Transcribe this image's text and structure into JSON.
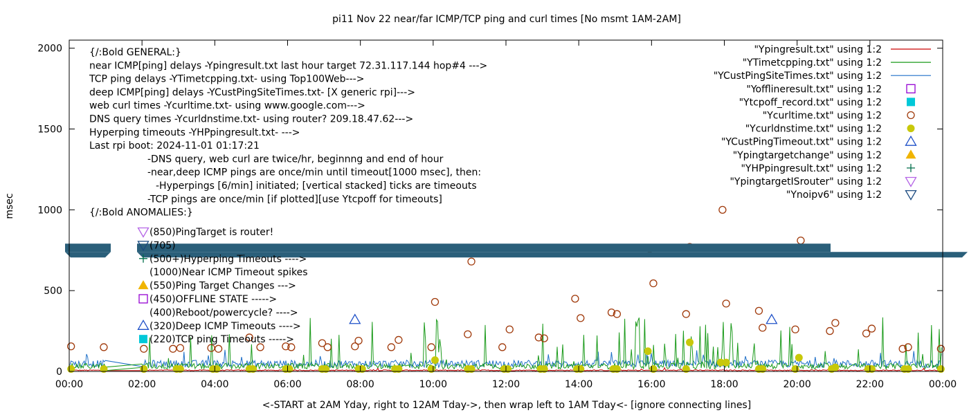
{
  "colors": {
    "ping": "#cc0000",
    "tcp": "#1a9a1a",
    "cust": "#1e6fc8",
    "offline": "#9400d3",
    "tcpoff": "#00c8d8",
    "curl": "#a0390a",
    "dns": "#c8c80a",
    "custTimeout": "#1e50c8",
    "targetChange": "#f0b400",
    "hp": "#006e4a",
    "isRouter": "#b464e6",
    "noipv6": "#1a4a80",
    "band": "#2a5f7a"
  },
  "chart_data": {
    "type": "scatter",
    "title": "pi11 Nov 22  near/far ICMP/TCP ping and curl times [No msmt 1AM-2AM]",
    "xlabel": "<-START at 2AM Yday, right to 12AM Tday->, then wrap left to 1AM Tday<- [ignore connecting lines]",
    "ylabel": "msec",
    "xlim": [
      0,
      24
    ],
    "ylim": [
      0,
      2050
    ],
    "grid": false,
    "legend_position": "top-right",
    "x_ticks": [
      "00:00",
      "02:00",
      "04:00",
      "06:00",
      "08:00",
      "10:00",
      "12:00",
      "14:00",
      "16:00",
      "18:00",
      "20:00",
      "22:00",
      "00:00"
    ],
    "y_ticks": [
      "0",
      "500",
      "1000",
      "1500",
      "2000"
    ],
    "annotation_lines": [
      "{/:Bold GENERAL:}",
      "near ICMP[ping] delays -Ypingresult.txt last hour target 72.31.117.144 hop#4 --->",
      "TCP ping delays -YTimetcpping.txt- using Top100Web--->",
      "deep ICMP[ping] delays -YCustPingSiteTimes.txt- [X generic rpi]--->",
      "web curl times -Ycurltime.txt- using www.google.com--->",
      "DNS query times -Ycurldnstime.txt- using router? 209.18.47.62--->",
      "Hyperping timeouts -YHPpingresult.txt- --->",
      "Last rpi boot: 2024-11-01 01:17:21",
      "-DNS query, web curl are twice/hr, beginnng and end of hour",
      "-near,deep ICMP pings are once/min until timeout[1000 msec], then:",
      "-Hyperpings [6/min] initiated; [vertical stacked] ticks are timeouts",
      "-TCP pings are once/min [if plotted][use Ytcpoff for timeouts]",
      "{/:Bold ANOMALIES:}"
    ],
    "anomaly_lines": [
      {
        "text": "(850)PingTarget is router!",
        "symbol": "isRouter"
      },
      {
        "text": "(705)",
        "symbol": "noipv6"
      },
      {
        "text": "(500+)Hyperping Timeouts ---->",
        "symbol": "hp"
      },
      {
        "text": "(1000)Near ICMP Timeout spikes",
        "symbol": ""
      },
      {
        "text": "(550)Ping Target Changes --->",
        "symbol": "targetChange"
      },
      {
        "text": "(450)OFFLINE STATE ----->",
        "symbol": "offline"
      },
      {
        "text": "(400)Reboot/powercycle? ---->",
        "symbol": ""
      },
      {
        "text": "(320)Deep ICMP Timeouts ---->",
        "symbol": "custTimeout"
      },
      {
        "text": "(220)TCP ping Timeouts ----->",
        "symbol": "tcpoff"
      }
    ],
    "legend": [
      {
        "file": "\"Ypingresult.txt\"",
        "using": "using 1:2",
        "style": "line",
        "color": "ping"
      },
      {
        "file": "\"YTimetcpping.txt\"",
        "using": "using 1:2",
        "style": "line",
        "color": "tcp"
      },
      {
        "file": "\"YCustPingSiteTimes.txt\"",
        "using": "using 1:2",
        "style": "line",
        "color": "cust"
      },
      {
        "file": "\"Yofflineresult.txt\"",
        "using": "using 1:2",
        "style": "open-square",
        "color": "offline"
      },
      {
        "file": "\"Ytcpoff_record.txt\"",
        "using": "using 1:2",
        "style": "filled-square",
        "color": "tcpoff"
      },
      {
        "file": "\"Ycurltime.txt\"",
        "using": "using 1:2",
        "style": "open-circle",
        "color": "curl"
      },
      {
        "file": "\"Ycurldnstime.txt\"",
        "using": "using 1:2",
        "style": "filled-circle",
        "color": "dns"
      },
      {
        "file": "\"YCustPingTimeout.txt\"",
        "using": "using 1:2",
        "style": "open-triangle",
        "color": "custTimeout"
      },
      {
        "file": "\"Ypingtargetchange\"",
        "using": "using 1:2",
        "style": "filled-triangle",
        "color": "targetChange"
      },
      {
        "file": "\"YHPpingresult.txt\"",
        "using": "using 1:2",
        "style": "plus",
        "color": "hp"
      },
      {
        "file": "\"YpingtargetISrouter\"",
        "using": "using 1:2",
        "style": "down-triangle",
        "color": "isRouter"
      },
      {
        "file": "\"Ynoipv6\"",
        "using": "using 1:2",
        "style": "down-triangle",
        "color": "noipv6"
      }
    ],
    "ipv6_band_y": 765,
    "series": [
      {
        "name": "\"Ycurltime.txt\"",
        "marker": "open-circle",
        "x": [
          0.05,
          0.95,
          2.05,
          2.85,
          3.05,
          3.9,
          4.1,
          4.95,
          5.25,
          5.95,
          6.1,
          6.95,
          7.1,
          7.85,
          7.95,
          8.85,
          9.05,
          9.95,
          10.05,
          10.95,
          11.05,
          11.9,
          12.1,
          12.9,
          13.05,
          13.9,
          14.05,
          14.9,
          15.05,
          15.95,
          16.05,
          16.95,
          17.05,
          17.95,
          18.05,
          18.95,
          19.05,
          19.95,
          20.1,
          20.9,
          21.05,
          21.9,
          22.05,
          22.9,
          23.05,
          23.95
        ],
        "y": [
          155,
          150,
          140,
          140,
          145,
          145,
          140,
          210,
          150,
          155,
          150,
          175,
          150,
          155,
          190,
          150,
          195,
          150,
          430,
          230,
          680,
          150,
          260,
          210,
          205,
          450,
          330,
          365,
          355,
          760,
          545,
          355,
          770,
          1000,
          420,
          375,
          270,
          260,
          810,
          250,
          300,
          235,
          265,
          140,
          150,
          140
        ]
      },
      {
        "name": "\"Ycurldnstime.txt\"",
        "marker": "filled-circle",
        "x": [
          0.05,
          0.95,
          2.05,
          2.95,
          3.05,
          3.95,
          4.05,
          4.95,
          5.05,
          5.95,
          6.05,
          6.95,
          7.05,
          7.95,
          8.05,
          8.95,
          9.05,
          9.95,
          10.05,
          10.95,
          11.05,
          11.95,
          12.05,
          12.95,
          13.05,
          13.95,
          14.05,
          14.95,
          15.05,
          15.9,
          16.05,
          16.95,
          17.05,
          17.9,
          18.05,
          18.95,
          19.05,
          19.95,
          20.05,
          20.95,
          21.05,
          21.95,
          22.05,
          22.95,
          23.05,
          23.95
        ],
        "y": [
          15,
          15,
          15,
          15,
          15,
          15,
          15,
          15,
          15,
          15,
          15,
          15,
          15,
          15,
          15,
          15,
          15,
          15,
          70,
          15,
          15,
          15,
          15,
          15,
          15,
          15,
          15,
          15,
          15,
          125,
          15,
          15,
          180,
          55,
          55,
          15,
          15,
          15,
          85,
          15,
          25,
          15,
          15,
          15,
          15,
          15
        ]
      },
      {
        "name": "\"YCustPingTimeout.txt\"",
        "marker": "open-triangle",
        "x": [
          7.85,
          19.3
        ],
        "y": [
          320,
          320
        ]
      }
    ]
  }
}
